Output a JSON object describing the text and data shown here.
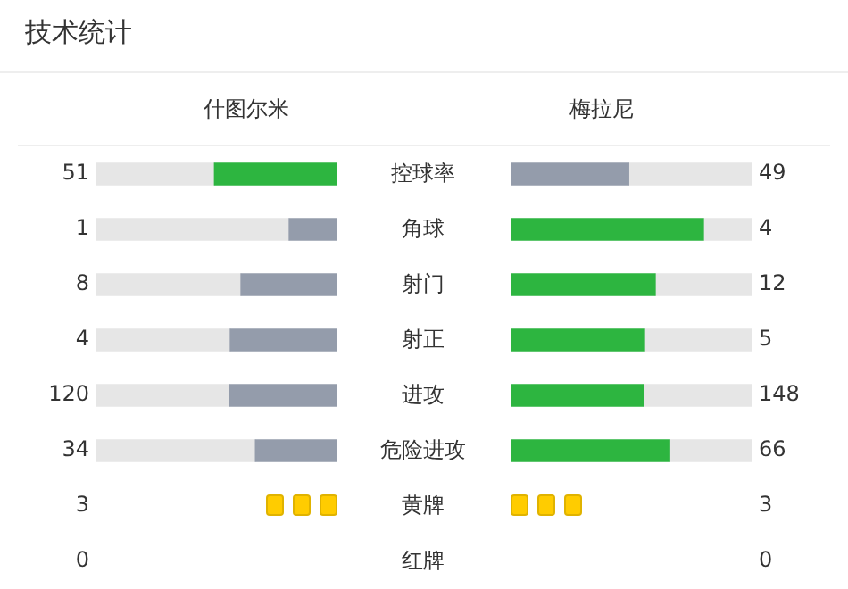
{
  "chart_data": {
    "type": "other",
    "title": "技术统计",
    "categories": [
      "控球率",
      "角球",
      "射门",
      "射正",
      "进攻",
      "危险进攻",
      "黄牌",
      "红牌"
    ],
    "data_labels": true,
    "series": [
      {
        "name": "什图尔米",
        "colors": [
          "#2db540",
          "#949cab",
          "#949cab",
          "#949cab",
          "#949cab",
          "#949cab",
          "#ffcc00",
          "#e63a2e"
        ],
        "values": [
          51,
          1,
          8,
          4,
          120,
          34,
          3,
          0
        ]
      },
      {
        "name": "梅拉尼",
        "colors": [
          "#949cab",
          "#2db540",
          "#2db540",
          "#2db540",
          "#2db540",
          "#2db540",
          "#ffcc00",
          "#e63a2e"
        ],
        "values": [
          49,
          4,
          12,
          5,
          148,
          66,
          3,
          0
        ]
      }
    ]
  }
}
